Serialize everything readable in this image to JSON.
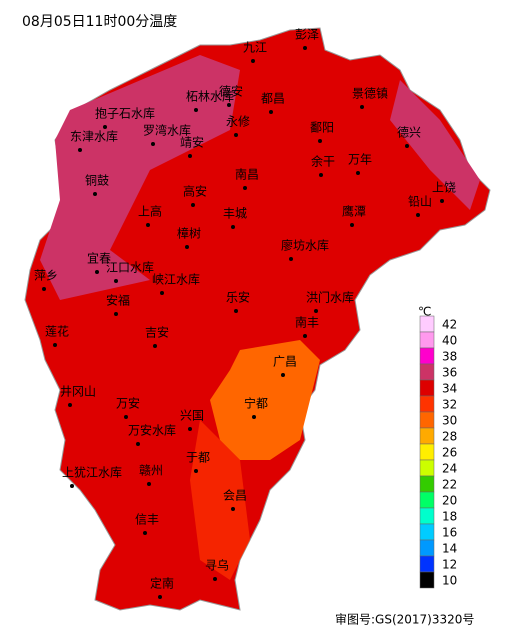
{
  "title": "08月05日11时00分温度",
  "legend": {
    "unit": "℃",
    "ticks": [
      42,
      40,
      38,
      36,
      34,
      32,
      30,
      28,
      26,
      24,
      22,
      20,
      18,
      16,
      14,
      12,
      10
    ],
    "colors": [
      "#ffccff",
      "#ff99ee",
      "#ff00cc",
      "#cc3366",
      "#dd0000",
      "#ff3300",
      "#ff6600",
      "#ffaa00",
      "#ffee00",
      "#ccff00",
      "#33cc00",
      "#00ff66",
      "#00ffcc",
      "#00ccff",
      "#0099ff",
      "#0033ff",
      "#000000"
    ]
  },
  "places": [
    "彭泽",
    "九江",
    "柘林水库",
    "德安",
    "都昌",
    "景德镇",
    "抱子石水库",
    "罗湾水库",
    "永修",
    "鄱阳",
    "德兴",
    "东津水库",
    "靖安",
    "余干",
    "万年",
    "铜鼓",
    "南昌",
    "高安",
    "上饶",
    "上高",
    "丰城",
    "鹰潭",
    "铅山",
    "樟树",
    "廖坊水库",
    "宜春",
    "江口水库",
    "萍乡",
    "峡江水库",
    "安福",
    "乐安",
    "洪门水库",
    "南丰",
    "莲花",
    "吉安",
    "广昌",
    "井冈山",
    "万安",
    "宁都",
    "兴国",
    "万安水库",
    "于都",
    "上犹江水库",
    "赣州",
    "会昌",
    "信丰",
    "寻乌",
    "定南"
  ],
  "footer": "审图号:GS(2017)3320号"
}
